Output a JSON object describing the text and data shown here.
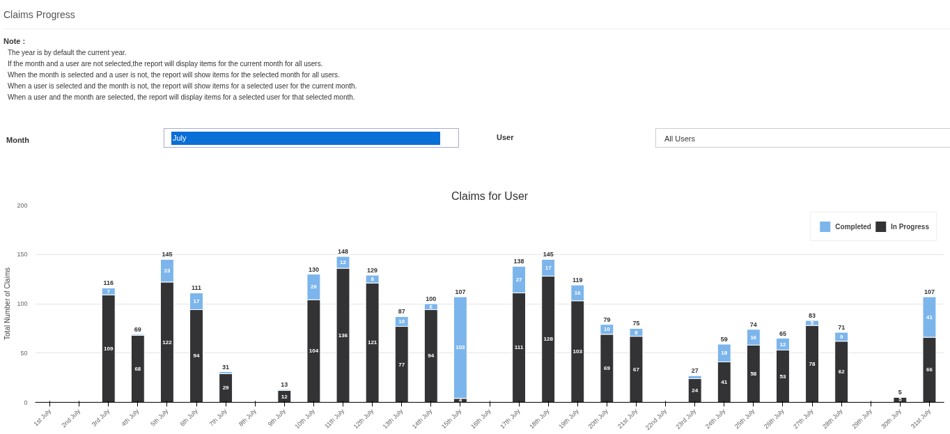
{
  "chart_data": {
    "type": "bar",
    "title": "Claims for User",
    "ylabel": "Total Number of Claims",
    "annotations": [
      "Claims Progress",
      "Note :",
      "The year is by default the current year.",
      "If the month and a user are not selected,the report will display items for the current month for all users.",
      "When the month is selected and a user is not, the report will show items for the selected month for all users.",
      "When a user is selected and the month is not, the report will show items for a selected user for the current month.",
      "When a user and the month are selected, the report will display items for a selected user for that selected month.",
      "Month",
      "July",
      "User",
      "All Users"
    ],
    "categories": [
      "1st July",
      "2nd July",
      "3rd July",
      "4th July",
      "5th July",
      "6th July",
      "7th July",
      "8th July",
      "9th July",
      "10th July",
      "11th July",
      "12th July",
      "13th July",
      "14th July",
      "15th July",
      "16th July",
      "17th July",
      "18th July",
      "19th July",
      "20th July",
      "21st July",
      "22nd July",
      "23rd July",
      "24th July",
      "25th July",
      "26th July",
      "27th July",
      "28th July",
      "29th July",
      "30th July",
      "31st July"
    ],
    "stacked": true,
    "series": [
      {
        "name": "In Progress",
        "color": "#333336",
        "values": [
          null,
          null,
          109,
          68,
          122,
          94,
          29,
          null,
          12,
          104,
          136,
          121,
          77,
          94,
          4,
          null,
          111,
          128,
          103,
          69,
          67,
          null,
          24,
          41,
          58,
          53,
          78,
          62,
          null,
          5,
          66
        ],
        "value_labels": [
          null,
          null,
          "109",
          "68",
          "122",
          "94",
          "29",
          null,
          "12",
          "104",
          "136",
          "121",
          "77",
          "94",
          "4",
          null,
          "111",
          "128",
          "103",
          "69",
          "67",
          null,
          "24",
          "41",
          "58",
          "53",
          "78",
          "62",
          null,
          "5",
          "66"
        ]
      },
      {
        "name": "Completed",
        "color": "#7cb5ec",
        "values": [
          null,
          null,
          7,
          1,
          23,
          17,
          2,
          null,
          1,
          26,
          12,
          8,
          10,
          6,
          103,
          null,
          27,
          17,
          16,
          10,
          8,
          null,
          3,
          18,
          16,
          12,
          5,
          9,
          null,
          null,
          41
        ],
        "value_labels": [
          null,
          null,
          "7",
          null,
          "23",
          "17",
          null,
          null,
          null,
          "26",
          "12",
          "8",
          "10",
          "6",
          "103",
          null,
          "27",
          "17",
          "16",
          "10",
          "8",
          null,
          null,
          "18",
          "16",
          "12",
          "5",
          "9",
          null,
          null,
          "41"
        ]
      }
    ],
    "totals": [
      null,
      null,
      "116",
      "69",
      "145",
      "111",
      "31",
      null,
      "13",
      "130",
      "148",
      "129",
      "87",
      "100",
      "107",
      null,
      "138",
      "145",
      "119",
      "79",
      "75",
      null,
      "27",
      "59",
      "74",
      "65",
      "83",
      "71",
      null,
      "5",
      "107"
    ],
    "ylim": [
      0,
      200
    ],
    "yticks": [
      0,
      50,
      100,
      150,
      200
    ],
    "grid": "y",
    "legend": "top right"
  }
}
